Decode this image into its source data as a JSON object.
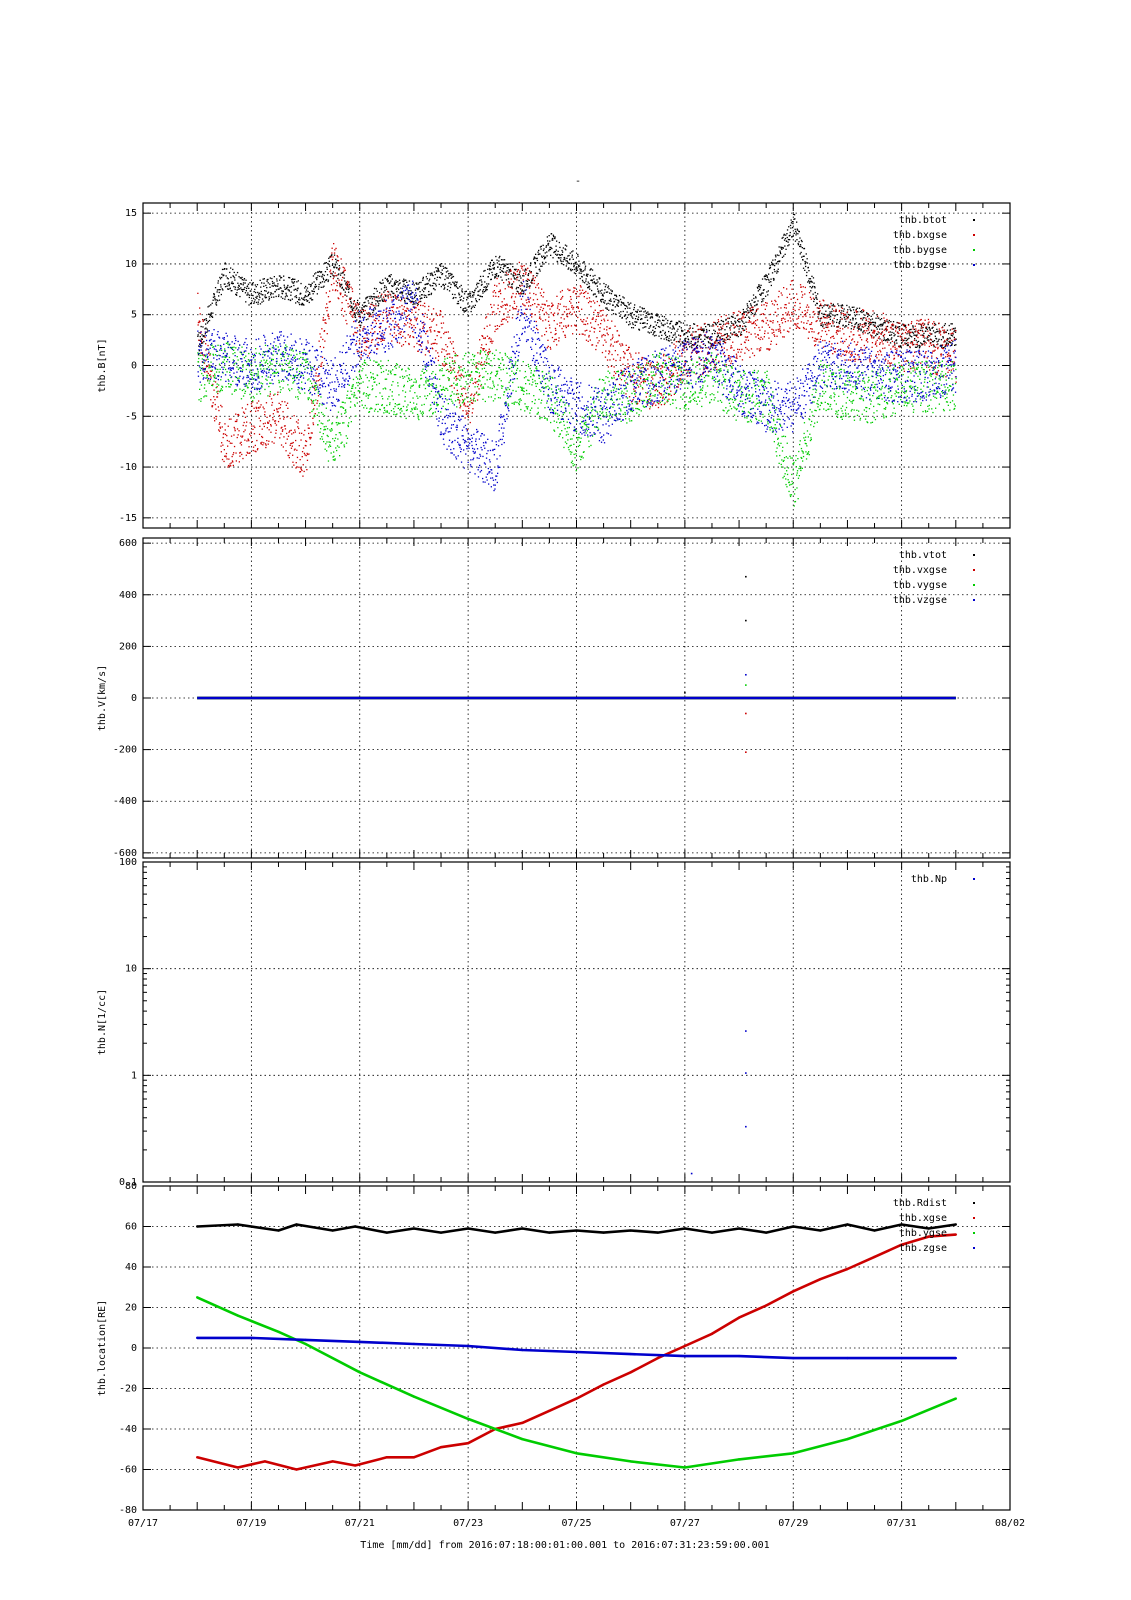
{
  "top_mark": "-",
  "xlabel": "Time [mm/dd]  from 2016:07:18:00:01:00.001  to  2016:07:31:23:59:00.001",
  "x_ticks": [
    "07/17",
    "07/19",
    "07/21",
    "07/23",
    "07/25",
    "07/27",
    "07/29",
    "07/31",
    "08/02"
  ],
  "colors": {
    "black": "#000000",
    "red": "#cc0000",
    "green": "#00cc00",
    "blue": "#0000cc"
  },
  "chart_data": [
    {
      "type": "scatter",
      "ylabel": "thb.B[nT]",
      "xlim": [
        "2016-07-17",
        "2016-08-02"
      ],
      "ylim": [
        -16,
        16
      ],
      "yticks": [
        "-15",
        "-10",
        "-5",
        "0",
        "5",
        "10",
        "15"
      ],
      "ytick_values": [
        -15,
        -10,
        -5,
        0,
        5,
        10,
        15
      ],
      "legend": [
        "thb.btot",
        "thb.bxgse",
        "thb.bygse",
        "thb.bzgse"
      ],
      "series": [
        {
          "name": "thb.btot",
          "color": "black",
          "x": [
            "2016-07-18",
            "2016-07-18 12:00",
            "2016-07-19",
            "2016-07-19 12:00",
            "2016-07-20",
            "2016-07-20 12:00",
            "2016-07-21",
            "2016-07-21 12:00",
            "2016-07-22",
            "2016-07-22 12:00",
            "2016-07-23",
            "2016-07-23 12:00",
            "2016-07-24",
            "2016-07-24 12:00",
            "2016-07-25",
            "2016-07-25 12:00",
            "2016-07-26",
            "2016-07-26 12:00",
            "2016-07-27",
            "2016-07-27 12:00",
            "2016-07-28",
            "2016-07-28 12:00",
            "2016-07-29",
            "2016-07-29 12:00",
            "2016-07-30",
            "2016-07-30 12:00",
            "2016-07-31",
            "2016-07-31 12:00",
            "2016-08-01"
          ],
          "values": [
            2,
            9,
            7,
            8,
            7,
            10,
            5,
            8,
            7,
            9,
            6,
            10,
            8,
            12,
            10,
            7,
            5,
            4,
            3,
            3,
            4,
            8,
            14,
            5,
            5,
            4,
            3,
            3,
            3
          ]
        },
        {
          "name": "thb.bxgse",
          "color": "red",
          "x": [
            "2016-07-18",
            "2016-07-18 12:00",
            "2016-07-19",
            "2016-07-19 12:00",
            "2016-07-20",
            "2016-07-20 12:00",
            "2016-07-21",
            "2016-07-21 12:00",
            "2016-07-22",
            "2016-07-22 12:00",
            "2016-07-23",
            "2016-07-23 12:00",
            "2016-07-24",
            "2016-07-24 12:00",
            "2016-07-25",
            "2016-07-25 12:00",
            "2016-07-26",
            "2016-07-26 12:00",
            "2016-07-27",
            "2016-07-27 12:00",
            "2016-07-28",
            "2016-07-28 12:00",
            "2016-07-29",
            "2016-07-29 12:00",
            "2016-07-30",
            "2016-07-30 12:00",
            "2016-07-31",
            "2016-07-31 12:00",
            "2016-08-01"
          ],
          "values": [
            5,
            -8,
            -6,
            -5,
            -9,
            10,
            3,
            5,
            4,
            3,
            -4,
            6,
            8,
            4,
            6,
            3,
            -1,
            -2,
            1,
            2,
            3,
            4,
            6,
            4,
            3,
            3,
            2,
            2,
            1
          ]
        },
        {
          "name": "thb.bygse",
          "color": "green",
          "x": [
            "2016-07-18",
            "2016-07-18 12:00",
            "2016-07-19",
            "2016-07-19 12:00",
            "2016-07-20",
            "2016-07-20 12:00",
            "2016-07-21",
            "2016-07-21 12:00",
            "2016-07-22",
            "2016-07-22 12:00",
            "2016-07-23",
            "2016-07-23 12:00",
            "2016-07-24",
            "2016-07-24 12:00",
            "2016-07-25",
            "2016-07-25 12:00",
            "2016-07-26",
            "2016-07-26 12:00",
            "2016-07-27",
            "2016-07-27 12:00",
            "2016-07-28",
            "2016-07-28 12:00",
            "2016-07-29",
            "2016-07-29 12:00",
            "2016-07-30",
            "2016-07-30 12:00",
            "2016-07-31",
            "2016-07-31 12:00",
            "2016-08-01"
          ],
          "values": [
            -1,
            0,
            -1,
            0,
            -1,
            -8,
            -2,
            -2,
            -3,
            -2,
            -1,
            -1,
            -2,
            -3,
            -8,
            -3,
            -3,
            -1,
            -2,
            -1,
            -3,
            -3,
            -12,
            -2,
            -3,
            -3,
            -2,
            -2,
            -2
          ]
        },
        {
          "name": "thb.bzgse",
          "color": "blue",
          "x": [
            "2016-07-18",
            "2016-07-18 12:00",
            "2016-07-19",
            "2016-07-19 12:00",
            "2016-07-20",
            "2016-07-20 12:00",
            "2016-07-21",
            "2016-07-21 12:00",
            "2016-07-22",
            "2016-07-22 12:00",
            "2016-07-23",
            "2016-07-23 12:00",
            "2016-07-24",
            "2016-07-24 12:00",
            "2016-07-25",
            "2016-07-25 12:00",
            "2016-07-26",
            "2016-07-26 12:00",
            "2016-07-27",
            "2016-07-27 12:00",
            "2016-07-28",
            "2016-07-28 12:00",
            "2016-07-29",
            "2016-07-29 12:00",
            "2016-07-30",
            "2016-07-30 12:00",
            "2016-07-31",
            "2016-07-31 12:00",
            "2016-08-01"
          ],
          "values": [
            1,
            1,
            0,
            1,
            0,
            -2,
            3,
            4,
            6,
            -5,
            -8,
            -10,
            6,
            -2,
            -4,
            -5,
            -2,
            -1,
            0,
            1,
            -2,
            -4,
            -4,
            0,
            0,
            -1,
            -1,
            -1,
            0
          ]
        }
      ]
    },
    {
      "type": "scatter",
      "ylabel": "thb.V[km/s]",
      "xlim": [
        "2016-07-17",
        "2016-08-02"
      ],
      "ylim": [
        -620,
        620
      ],
      "yticks": [
        "-600",
        "-400",
        "-200",
        "0",
        "200",
        "400",
        "600"
      ],
      "ytick_values": [
        -600,
        -400,
        -200,
        0,
        200,
        400,
        600
      ],
      "legend": [
        "thb.vtot",
        "thb.vxgse",
        "thb.vygse",
        "thb.vzgse"
      ],
      "series": [
        {
          "name": "thb.vtot",
          "color": "black",
          "x": [
            "2016-07-18",
            "2016-08-01",
            "2016-07-27",
            "2016-07-28 03:00",
            "2016-07-28 03:00"
          ],
          "values": [
            0,
            0,
            20,
            470,
            300
          ]
        },
        {
          "name": "thb.vxgse",
          "color": "red",
          "x": [
            "2016-07-18",
            "2016-08-01",
            "2016-07-28 03:00",
            "2016-07-28 03:00"
          ],
          "values": [
            0,
            0,
            -60,
            -210
          ]
        },
        {
          "name": "thb.vygse",
          "color": "green",
          "x": [
            "2016-07-18",
            "2016-08-01",
            "2016-07-28 03:00"
          ],
          "values": [
            0,
            0,
            50
          ]
        },
        {
          "name": "thb.vzgse",
          "color": "blue",
          "x": [
            "2016-07-18",
            "2016-08-01",
            "2016-07-28 03:00"
          ],
          "values": [
            0,
            0,
            90
          ]
        }
      ]
    },
    {
      "type": "scatter",
      "ylabel": "thb.N[1/cc]",
      "yscale": "log",
      "xlim": [
        "2016-07-17",
        "2016-08-02"
      ],
      "ylim": [
        0.1,
        100
      ],
      "yticks": [
        "0.1",
        "1",
        "10",
        "100"
      ],
      "ytick_values": [
        0.1,
        1,
        10,
        100
      ],
      "legend": [
        "thb.Np"
      ],
      "series": [
        {
          "name": "thb.Np",
          "color": "blue",
          "x": [
            "2016-07-28 03:00",
            "2016-07-28 03:00",
            "2016-07-28 03:00",
            "2016-07-27 03:00"
          ],
          "values": [
            2.6,
            1.05,
            0.33,
            0.12
          ]
        }
      ]
    },
    {
      "type": "line",
      "ylabel": "thb.location[RE]",
      "xlim": [
        "2016-07-17",
        "2016-08-02"
      ],
      "ylim": [
        -80,
        80
      ],
      "yticks": [
        "-80",
        "-60",
        "-40",
        "-20",
        "0",
        "20",
        "40",
        "60",
        "80"
      ],
      "ytick_values": [
        -80,
        -60,
        -40,
        -20,
        0,
        20,
        40,
        60,
        80
      ],
      "legend": [
        "thb.Rdist",
        "thb.xgse",
        "thb.ygse",
        "thb.zgse"
      ],
      "series": [
        {
          "name": "thb.Rdist",
          "color": "black",
          "x": [
            "2016-07-18",
            "2016-07-18 18:00",
            "2016-07-19 12:00",
            "2016-07-19 20:00",
            "2016-07-20 12:00",
            "2016-07-20 22:00",
            "2016-07-21 12:00",
            "2016-07-22",
            "2016-07-22 12:00",
            "2016-07-23",
            "2016-07-23 12:00",
            "2016-07-24",
            "2016-07-24 12:00",
            "2016-07-25",
            "2016-07-25 12:00",
            "2016-07-26",
            "2016-07-26 12:00",
            "2016-07-27",
            "2016-07-27 12:00",
            "2016-07-28",
            "2016-07-28 12:00",
            "2016-07-29",
            "2016-07-29 12:00",
            "2016-07-30",
            "2016-07-30 12:00",
            "2016-07-31",
            "2016-07-31 12:00",
            "2016-08-01"
          ],
          "values": [
            60,
            61,
            58,
            61,
            58,
            60,
            57,
            59,
            57,
            59,
            57,
            59,
            57,
            58,
            57,
            58,
            57,
            59,
            57,
            59,
            57,
            60,
            58,
            61,
            58,
            61,
            59,
            61
          ]
        },
        {
          "name": "thb.xgse",
          "color": "red",
          "x": [
            "2016-07-18",
            "2016-07-18 18:00",
            "2016-07-19 06:00",
            "2016-07-19 20:00",
            "2016-07-20 12:00",
            "2016-07-20 22:00",
            "2016-07-21 12:00",
            "2016-07-22",
            "2016-07-22 12:00",
            "2016-07-23",
            "2016-07-23 12:00",
            "2016-07-24",
            "2016-07-24 12:00",
            "2016-07-25",
            "2016-07-25 12:00",
            "2016-07-26",
            "2016-07-26 12:00",
            "2016-07-27",
            "2016-07-27 12:00",
            "2016-07-28",
            "2016-07-28 12:00",
            "2016-07-29",
            "2016-07-29 12:00",
            "2016-07-30",
            "2016-07-30 12:00",
            "2016-07-31",
            "2016-07-31 12:00",
            "2016-08-01"
          ],
          "values": [
            -54,
            -59,
            -56,
            -60,
            -56,
            -58,
            -54,
            -54,
            -49,
            -47,
            -40,
            -37,
            -31,
            -25,
            -18,
            -12,
            -5,
            1,
            7,
            15,
            21,
            28,
            34,
            39,
            45,
            51,
            55,
            56
          ]
        },
        {
          "name": "thb.ygse",
          "color": "green",
          "x": [
            "2016-07-18",
            "2016-07-18 18:00",
            "2016-07-19 12:00",
            "2016-07-20",
            "2016-07-21",
            "2016-07-22",
            "2016-07-23",
            "2016-07-24",
            "2016-07-25",
            "2016-07-26",
            "2016-07-27",
            "2016-07-28",
            "2016-07-29",
            "2016-07-30",
            "2016-07-31",
            "2016-08-01"
          ],
          "values": [
            25,
            16,
            8,
            2,
            -12,
            -24,
            -35,
            -45,
            -52,
            -56,
            -59,
            -55,
            -52,
            -45,
            -36,
            -25
          ]
        },
        {
          "name": "thb.zgse",
          "color": "blue",
          "x": [
            "2016-07-18",
            "2016-07-19",
            "2016-07-20",
            "2016-07-21",
            "2016-07-22",
            "2016-07-23",
            "2016-07-24",
            "2016-07-25",
            "2016-07-26",
            "2016-07-27",
            "2016-07-28",
            "2016-07-29",
            "2016-07-30",
            "2016-07-31",
            "2016-08-01"
          ],
          "values": [
            5,
            5,
            4,
            3,
            2,
            1,
            -1,
            -2,
            -3,
            -4,
            -4,
            -5,
            -5,
            -5,
            -5
          ]
        }
      ]
    }
  ]
}
